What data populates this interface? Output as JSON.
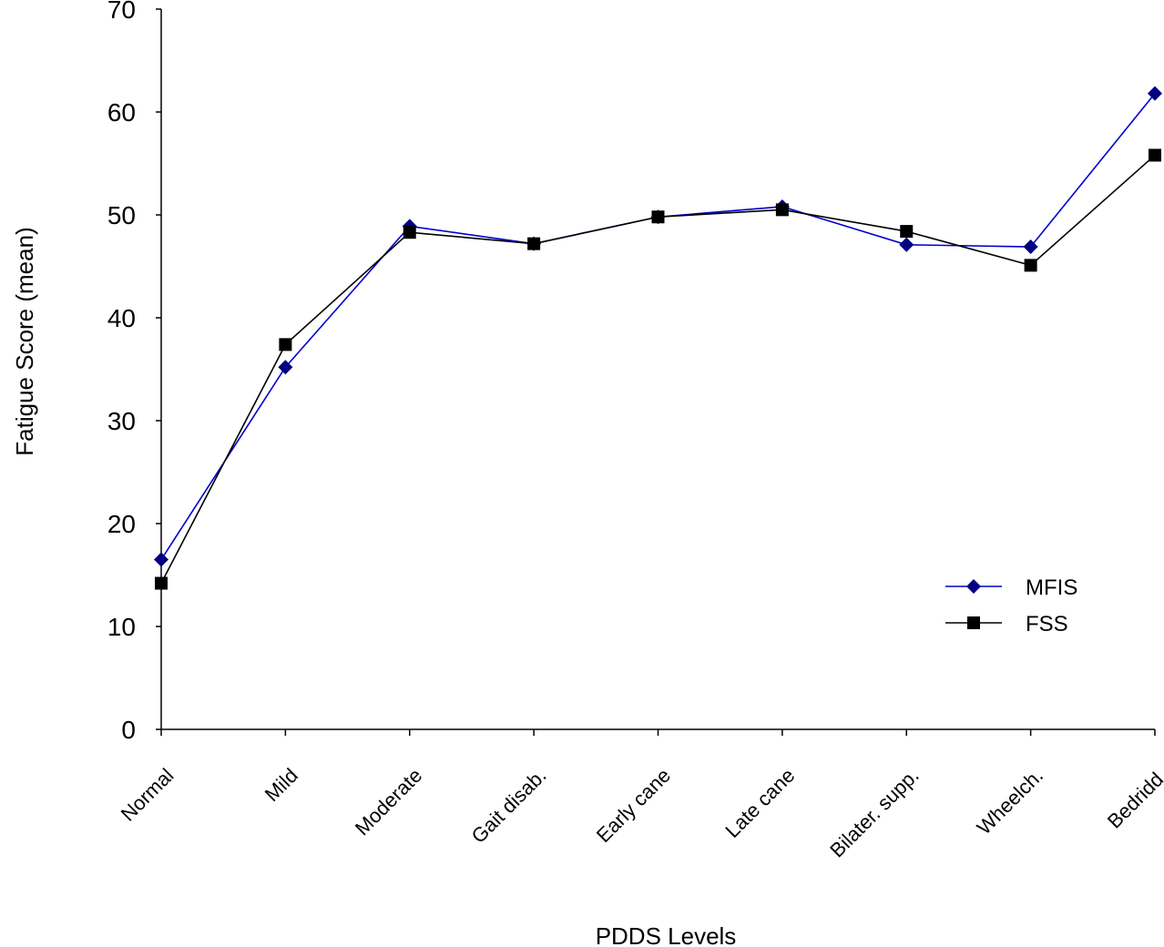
{
  "chart_data": {
    "type": "line",
    "title": "",
    "xlabel": "PDDS Levels",
    "ylabel": "Fatigue Score (mean)",
    "ylim": [
      0,
      70
    ],
    "yticks": [
      0,
      10,
      20,
      30,
      40,
      50,
      60,
      70
    ],
    "categories": [
      "Normal",
      "Mild",
      "Moderate",
      "Gait disab.",
      "Early cane",
      "Late cane",
      "Bilater. supp.",
      "Wheelch.",
      "Bedridd."
    ],
    "grid": false,
    "legend_position": "right",
    "series": [
      {
        "name": "MFIS",
        "color": "#0000cc",
        "marker_color": "#000080",
        "marker": "diamond",
        "values": [
          16.5,
          35.2,
          48.9,
          47.2,
          49.8,
          50.8,
          47.1,
          46.9,
          61.8
        ]
      },
      {
        "name": "FSS",
        "color": "#000000",
        "marker_color": "#000000",
        "marker": "square",
        "values": [
          14.2,
          37.4,
          48.3,
          47.2,
          49.8,
          50.5,
          48.4,
          45.1,
          55.8
        ]
      }
    ]
  }
}
